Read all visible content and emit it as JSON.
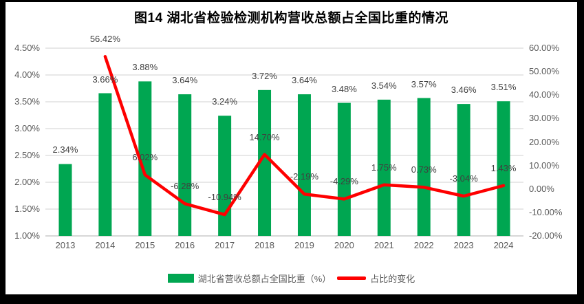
{
  "title": "图14 湖北省检验检测机构营收总额占全国比重的情况",
  "frame": {
    "border_color": "#000000",
    "canvas_color": "#ffffff"
  },
  "colors": {
    "bar_green": "#00A651",
    "line_red": "#FE0000",
    "gridline": "#D9D9D9",
    "axis_line": "#BFBFBF",
    "axis_text": "#595959",
    "data_label_text": "#404040",
    "title_text": "#000000"
  },
  "chart_data": {
    "type": "bar+line combo",
    "title": "图14 湖北省检验检测机构营收总额占全国比重的情况",
    "categories": [
      "2013",
      "2014",
      "2015",
      "2016",
      "2017",
      "2018",
      "2019",
      "2020",
      "2021",
      "2022",
      "2023",
      "2024"
    ],
    "series": [
      {
        "name": "湖北省营收总额占全国比重（%）",
        "type": "bar",
        "axis": "left",
        "color": "#00A651",
        "values": [
          2.34,
          3.66,
          3.88,
          3.64,
          3.24,
          3.72,
          3.64,
          3.48,
          3.54,
          3.57,
          3.46,
          3.51
        ],
        "labels": [
          "2.34%",
          "3.66%",
          "3.88%",
          "3.64%",
          "3.24%",
          "3.72%",
          "3.64%",
          "3.48%",
          "3.54%",
          "3.57%",
          "3.46%",
          "3.51%"
        ]
      },
      {
        "name": "占比的变化",
        "type": "line",
        "axis": "right",
        "color": "#FE0000",
        "values": [
          null,
          56.42,
          6.02,
          -6.28,
          -10.94,
          14.7,
          -2.19,
          -4.29,
          1.75,
          0.73,
          -3.04,
          1.43
        ],
        "labels": [
          null,
          "56.42%",
          "6.02%",
          "-6.28%",
          "-10.94%",
          "14.70%",
          "-2.19%",
          "-4.29%",
          "1.75%",
          "0.73%",
          "-3.04%",
          "1.43%"
        ]
      }
    ],
    "left_axis": {
      "min": 1.0,
      "max": 4.5,
      "ticks": [
        "4.50%",
        "4.00%",
        "3.50%",
        "3.00%",
        "2.50%",
        "2.00%",
        "1.50%",
        "1.00%"
      ]
    },
    "right_axis": {
      "min": -20,
      "max": 60,
      "ticks": [
        "60.00%",
        "50.00%",
        "40.00%",
        "30.00%",
        "20.00%",
        "10.00%",
        "0.00%",
        "-10.00%",
        "-20.00%"
      ]
    },
    "grid": true,
    "legend_position": "bottom"
  }
}
